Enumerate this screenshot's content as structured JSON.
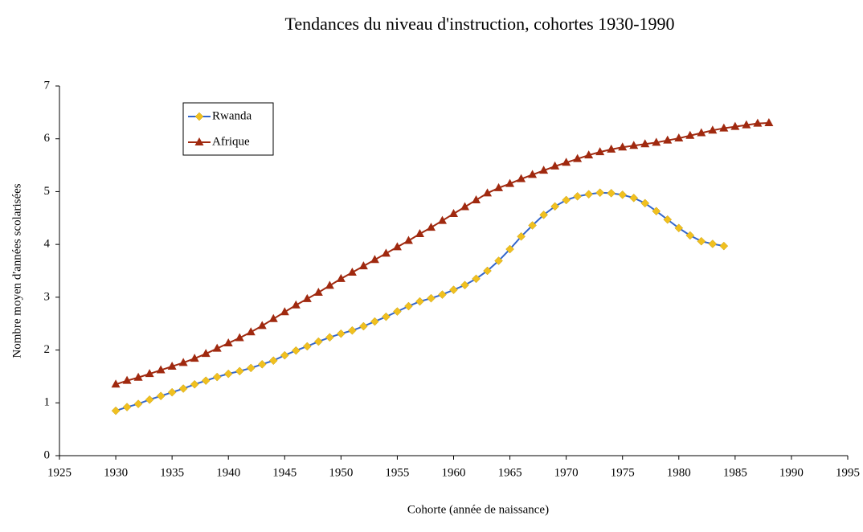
{
  "chart_data": {
    "type": "line",
    "title": "Tendances du niveau d'instruction, cohortes 1930-1990",
    "x_label": "Cohorte (année de naissance)",
    "y_label": "Nombre moyen d'années scolarisées",
    "x": [
      1930,
      1931,
      1932,
      1933,
      1934,
      1935,
      1936,
      1937,
      1938,
      1939,
      1940,
      1941,
      1942,
      1943,
      1944,
      1945,
      1946,
      1947,
      1948,
      1949,
      1950,
      1951,
      1952,
      1953,
      1954,
      1955,
      1956,
      1957,
      1958,
      1959,
      1960,
      1961,
      1962,
      1963,
      1964,
      1965,
      1966,
      1967,
      1968,
      1969,
      1970,
      1971,
      1972,
      1973,
      1974,
      1975,
      1976,
      1977,
      1978,
      1979,
      1980,
      1981,
      1982,
      1983,
      1984,
      1985,
      1986,
      1987,
      1988
    ],
    "series": [
      {
        "name": "Rwanda",
        "color": "#3366cc",
        "marker": "diamond",
        "marker_color": "#f0c020",
        "values": [
          0.85,
          0.92,
          0.98,
          1.06,
          1.13,
          1.2,
          1.27,
          1.35,
          1.42,
          1.49,
          1.55,
          1.6,
          1.66,
          1.73,
          1.8,
          1.9,
          1.99,
          2.07,
          2.16,
          2.24,
          2.31,
          2.37,
          2.45,
          2.54,
          2.63,
          2.73,
          2.83,
          2.92,
          2.98,
          3.05,
          3.14,
          3.23,
          3.35,
          3.5,
          3.69,
          3.91,
          4.15,
          4.36,
          4.56,
          4.72,
          4.84,
          4.91,
          4.95,
          4.98,
          4.97,
          4.94,
          4.88,
          4.78,
          4.63,
          4.47,
          4.31,
          4.17,
          4.06,
          4.01,
          3.97,
          null,
          null,
          null,
          null
        ]
      },
      {
        "name": "Afrique",
        "color": "#a0290f",
        "marker": "triangle",
        "marker_color": "#a0290f",
        "values": [
          1.35,
          1.42,
          1.48,
          1.55,
          1.62,
          1.69,
          1.76,
          1.84,
          1.93,
          2.03,
          2.13,
          2.23,
          2.34,
          2.46,
          2.59,
          2.72,
          2.85,
          2.97,
          3.09,
          3.22,
          3.35,
          3.47,
          3.59,
          3.71,
          3.83,
          3.95,
          4.07,
          4.2,
          4.32,
          4.45,
          4.58,
          4.71,
          4.84,
          4.97,
          5.07,
          5.15,
          5.24,
          5.32,
          5.4,
          5.48,
          5.55,
          5.62,
          5.69,
          5.75,
          5.8,
          5.84,
          5.87,
          5.9,
          5.93,
          5.97,
          6.01,
          6.06,
          6.11,
          6.16,
          6.2,
          6.23,
          6.26,
          6.29,
          6.3
        ]
      }
    ],
    "xlim": [
      1925,
      1995
    ],
    "xticks": [
      1925,
      1930,
      1935,
      1940,
      1945,
      1950,
      1955,
      1960,
      1965,
      1970,
      1975,
      1980,
      1985,
      1990,
      1995
    ],
    "ylim": [
      0,
      7
    ],
    "yticks": [
      0,
      1,
      2,
      3,
      4,
      5,
      6,
      7
    ],
    "grid": false,
    "legend": "upper-left"
  }
}
